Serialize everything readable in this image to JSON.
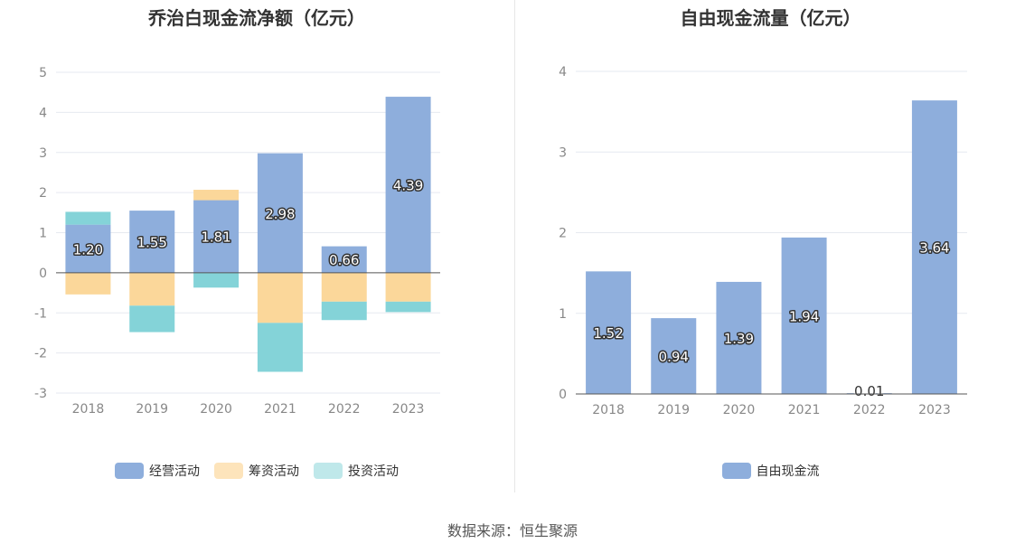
{
  "left": {
    "title": "乔治白现金流净额（亿元）",
    "legend": [
      {
        "label": "经营活动",
        "color": "#8eaedc"
      },
      {
        "label": "筹资活动",
        "color": "#fbd79a"
      },
      {
        "label": "投资活动",
        "color": "#84d3d8"
      }
    ]
  },
  "right": {
    "title": "自由现金流量（亿元）",
    "legend": [
      {
        "label": "自由现金流",
        "color": "#8eaedc"
      }
    ]
  },
  "source": "数据来源：恒生聚源",
  "chart_data": [
    {
      "type": "bar",
      "stacked": true,
      "title": "乔治白现金流净额（亿元）",
      "categories": [
        "2018",
        "2019",
        "2020",
        "2021",
        "2022",
        "2023"
      ],
      "ylim": [
        -3,
        5
      ],
      "yticks": [
        5,
        4,
        3,
        2,
        1,
        0,
        -1,
        -2,
        -3
      ],
      "legend_position": "bottom",
      "grid": true,
      "series": [
        {
          "name": "经营活动",
          "color": "#8eaedc",
          "values": [
            1.2,
            1.55,
            1.81,
            2.98,
            0.66,
            4.39
          ],
          "labels": [
            "1.20",
            "1.55",
            "1.81",
            "2.98",
            "0.66",
            "4.39"
          ]
        },
        {
          "name": "筹资活动",
          "color": "#fbd79a",
          "values": [
            -0.54,
            -0.82,
            0.26,
            -1.25,
            -0.72,
            -0.72
          ]
        },
        {
          "name": "投资活动",
          "color": "#84d3d8",
          "values": [
            0.32,
            -0.66,
            -0.37,
            -1.22,
            -0.46,
            -0.26
          ]
        }
      ]
    },
    {
      "type": "bar",
      "title": "自由现金流量（亿元）",
      "categories": [
        "2018",
        "2019",
        "2020",
        "2021",
        "2022",
        "2023"
      ],
      "ylim": [
        0,
        4
      ],
      "yticks": [
        4,
        3,
        2,
        1,
        0
      ],
      "legend_position": "bottom",
      "grid": true,
      "series": [
        {
          "name": "自由现金流",
          "color": "#8eaedc",
          "values": [
            1.52,
            0.94,
            1.39,
            1.94,
            0.01,
            3.64
          ],
          "labels": [
            "1.52",
            "0.94",
            "1.39",
            "1.94",
            "0.01",
            "3.64"
          ]
        }
      ]
    }
  ]
}
